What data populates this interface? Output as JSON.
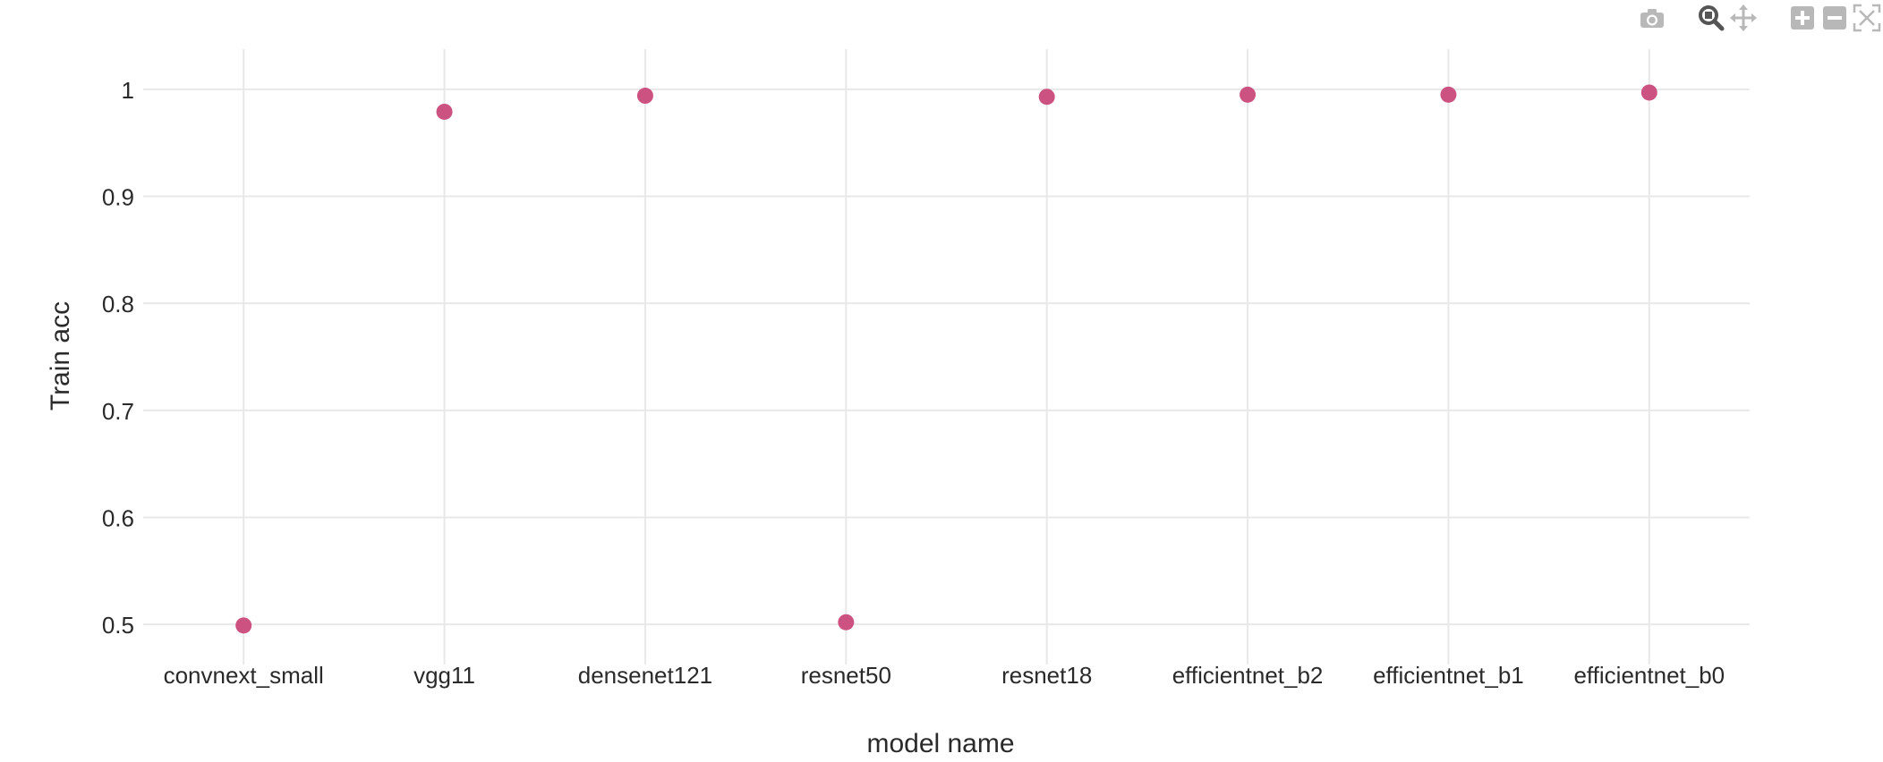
{
  "colors": {
    "marker": "#cc5281",
    "grid": "#e8e8e8",
    "axis_text": "#2a2a2a",
    "modebar_icon": "#b8b8b8",
    "modebar_active": "#555555"
  },
  "modebar": {
    "buttons": [
      {
        "icon": "camera-icon",
        "title": "Download plot as a png"
      },
      {
        "icon": "zoom-icon",
        "title": "Zoom"
      },
      {
        "icon": "pan-icon",
        "title": "Pan"
      },
      {
        "icon": "zoom-in-icon",
        "title": "Zoom in"
      },
      {
        "icon": "zoom-out-icon",
        "title": "Zoom out"
      },
      {
        "icon": "autoscale-icon",
        "title": "Autoscale"
      }
    ]
  },
  "chart_data": {
    "type": "scatter",
    "title": "",
    "xlabel": "model name",
    "ylabel": "Train acc",
    "categories": [
      "convnext_small",
      "vgg11",
      "densenet121",
      "resnet50",
      "resnet18",
      "efficientnet_b2",
      "efficientnet_b1",
      "efficientnet_b0"
    ],
    "values": [
      0.499,
      0.979,
      0.994,
      0.502,
      0.993,
      0.995,
      0.995,
      0.997
    ],
    "yticks": [
      0.5,
      0.6,
      0.7,
      0.8,
      0.9,
      1
    ],
    "ytick_labels": [
      "0.5",
      "0.6",
      "0.7",
      "0.8",
      "0.9",
      "1"
    ],
    "ylim": [
      0.4625,
      1.0375
    ],
    "grid": true,
    "legend": false
  }
}
